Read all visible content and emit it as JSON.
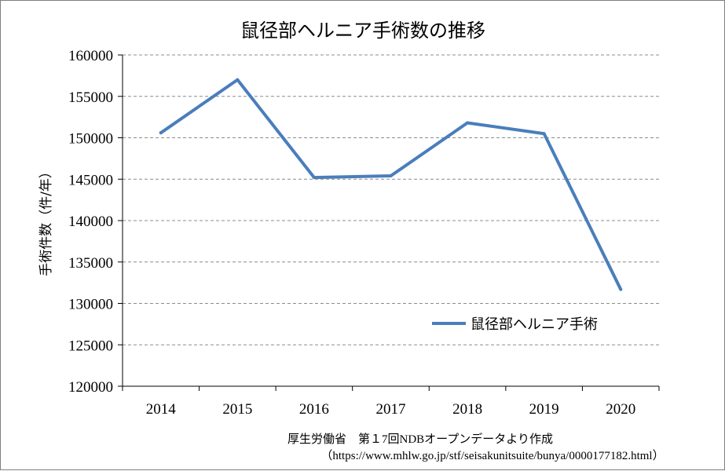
{
  "chart_data": {
    "type": "line",
    "title": "鼠径部ヘルニア手術数の推移",
    "ylabel": "手術件数（件/年）",
    "xlabel": "",
    "categories": [
      "2014",
      "2015",
      "2016",
      "2017",
      "2018",
      "2019",
      "2020"
    ],
    "series": [
      {
        "name": "鼠径部ヘルニア手術",
        "values": [
          150600,
          157000,
          145200,
          145400,
          151800,
          150500,
          131700
        ],
        "color": "#4a7ebb"
      }
    ],
    "ylim": [
      120000,
      160000
    ],
    "yticks": [
      "120000",
      "125000",
      "130000",
      "135000",
      "140000",
      "145000",
      "150000",
      "155000",
      "160000"
    ],
    "grid": true,
    "legend": "lower-right inside plot"
  },
  "source": {
    "line1": "厚生労働省　第１7回NDBオープンデータより作成",
    "line2": "（https://www.mhlw.go.jp/stf/seisakunitsuite/bunya/0000177182.html）"
  }
}
